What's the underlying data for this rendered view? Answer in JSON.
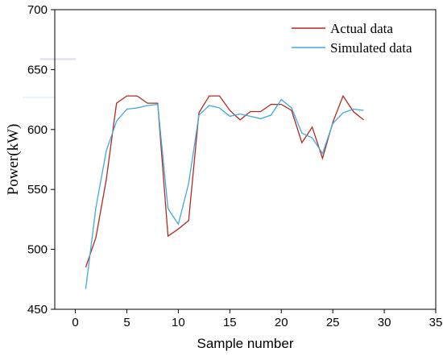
{
  "chart_data": {
    "type": "line",
    "title": "",
    "xlabel": "Sample number",
    "ylabel": "Power(kW)",
    "xlim": [
      -2,
      35
    ],
    "ylim": [
      450,
      700
    ],
    "xticks": [
      0,
      5,
      10,
      15,
      20,
      25,
      30,
      35
    ],
    "yticks": [
      450,
      500,
      550,
      600,
      650,
      700
    ],
    "grid": false,
    "legend_position": "top-right",
    "series": [
      {
        "name": "Actual data",
        "color": "#b22a1e",
        "x": [
          1,
          2,
          3,
          4,
          5,
          6,
          7,
          8,
          9,
          10,
          11,
          12,
          13,
          14,
          15,
          16,
          17,
          18,
          19,
          20,
          21,
          22,
          23,
          24,
          25,
          26,
          27,
          28
        ],
        "y": [
          485,
          510,
          558,
          622,
          628,
          628,
          622,
          622,
          511,
          517,
          524,
          614,
          628,
          628,
          616,
          608,
          615,
          615,
          621,
          621,
          616,
          589,
          602,
          576,
          606,
          628,
          615,
          608
        ]
      },
      {
        "name": "Simulated data",
        "color": "#3fa9e0",
        "x": [
          1,
          2,
          3,
          4,
          5,
          6,
          7,
          8,
          9,
          10,
          11,
          12,
          13,
          14,
          15,
          16,
          17,
          18,
          19,
          20,
          21,
          22,
          23,
          24,
          25,
          26,
          27,
          28
        ],
        "y": [
          467,
          535,
          582,
          607,
          617,
          618,
          620,
          621,
          534,
          521,
          555,
          612,
          620,
          618,
          611,
          613,
          611,
          609,
          612,
          625,
          618,
          597,
          593,
          580,
          605,
          614,
          617,
          616
        ]
      }
    ]
  }
}
